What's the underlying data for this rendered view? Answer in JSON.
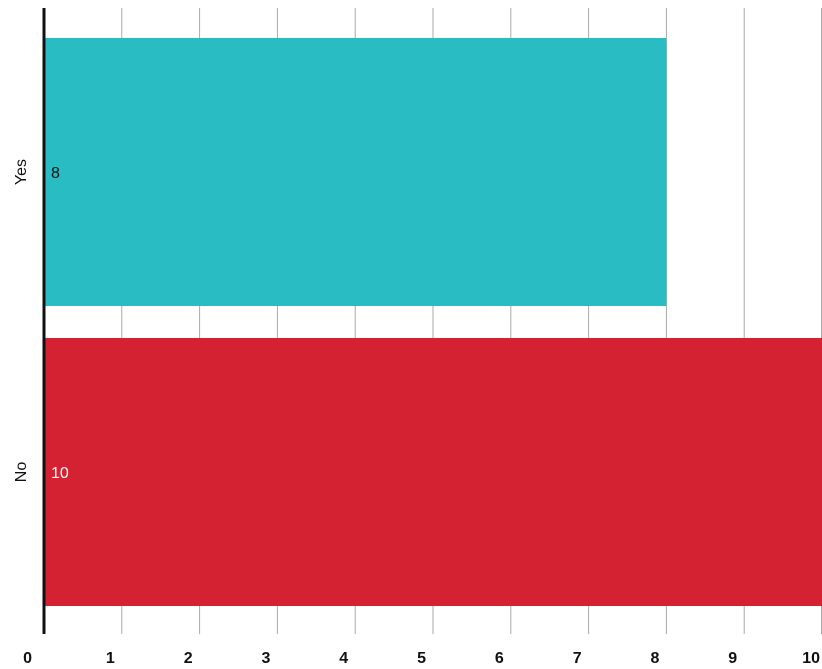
{
  "chart_data": {
    "type": "bar",
    "orientation": "horizontal",
    "categories": [
      "Yes",
      "No"
    ],
    "values": [
      8,
      10
    ],
    "bar_colors": [
      "#29bcc2",
      "#d42232"
    ],
    "data_label_colors": [
      "#111111",
      "#ffffff"
    ],
    "x_ticks": [
      "0",
      "1",
      "2",
      "3",
      "4",
      "5",
      "6",
      "7",
      "8",
      "9",
      "10"
    ],
    "xlim": [
      0,
      10
    ],
    "grid": true,
    "legend": "none",
    "title": "",
    "xlabel": "",
    "ylabel": ""
  }
}
